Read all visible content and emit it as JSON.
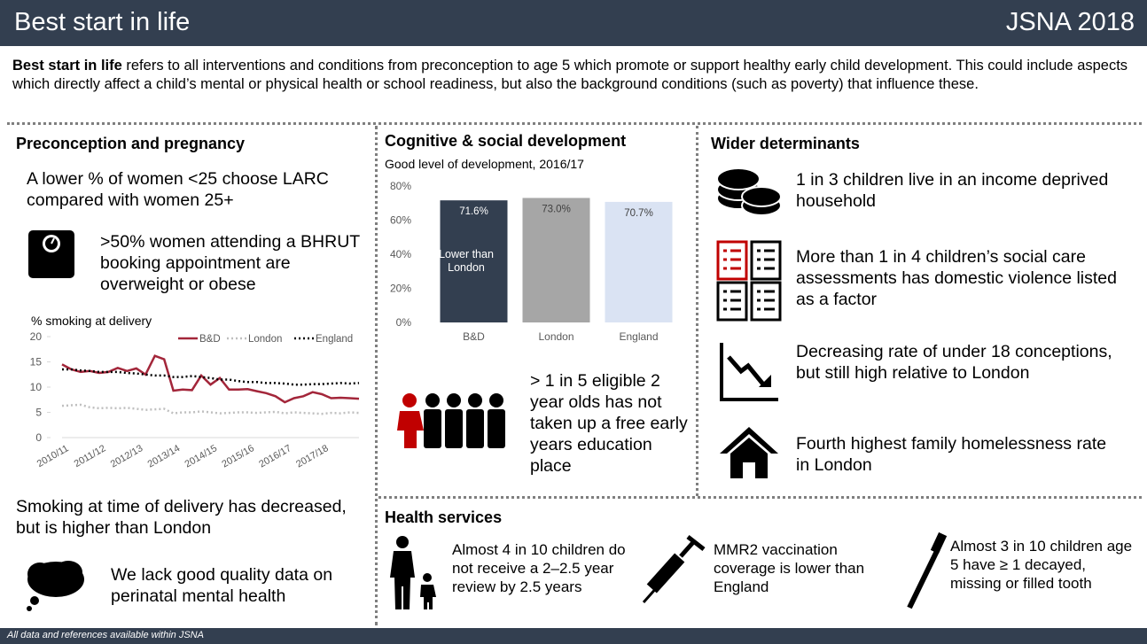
{
  "header": {
    "title": "Best start in life",
    "badge": "JSNA 2018"
  },
  "intro": {
    "lead": "Best start in life",
    "text": "refers to all interventions and conditions from preconception to age 5 which promote or support healthy early child development. This could include aspects which directly affect a child’s mental or physical health or school readiness, but also the background conditions (such as poverty) that influence these."
  },
  "preconception": {
    "heading": "Preconception and pregnancy",
    "larc": "A lower % of women <25 choose LARC compared with women 25+",
    "weight": ">50% women attending a BHRUT booking appointment are overweight or obese",
    "smoking_note": "Smoking at time of delivery has decreased, but is higher than London",
    "mental_health": "We lack good quality data on perinatal mental health"
  },
  "cognitive": {
    "heading": "Cognitive & social development",
    "uptake": "> 1 in 5 eligible 2 year olds has not taken up a free early years education place"
  },
  "wider": {
    "heading": "Wider determinants",
    "items": [
      "1 in 3 children live in an income deprived household",
      "More than 1 in 4 children’s social care assessments has domestic violence listed as a factor",
      "Decreasing rate of under 18 conceptions, but still high relative to London",
      "Fourth highest family homelessness rate in London"
    ]
  },
  "health": {
    "heading": "Health services",
    "items": [
      "Almost 4 in 10 children do not receive a 2–2.5 year review by 2.5 years",
      "MMR2 vaccination coverage is lower than England",
      "Almost 3 in 10 children age 5 have ≥ 1 decayed, missing or filled tooth"
    ]
  },
  "footer": "All data and references available within JSNA",
  "chart_data": [
    {
      "type": "bar",
      "title": "Good level of development, 2016/17",
      "categories": [
        "B&D",
        "London",
        "England"
      ],
      "values": [
        71.6,
        73.0,
        70.7
      ],
      "value_labels": [
        "71.6%",
        "73.0%",
        "70.7%"
      ],
      "colors": [
        "#333f50",
        "#a6a6a6",
        "#dae3f3"
      ],
      "annotation": "Lower than London",
      "ylim": [
        0,
        80
      ],
      "yticks": [
        {
          "value": 0,
          "label": "0%"
        },
        {
          "value": 20,
          "label": "20%"
        },
        {
          "value": 40,
          "label": "40%"
        },
        {
          "value": 60,
          "label": "60%"
        },
        {
          "value": 80,
          "label": "80%"
        }
      ]
    },
    {
      "type": "line",
      "title": "% smoking at delivery",
      "categories": [
        "2010/11",
        null,
        null,
        null,
        "2011/12",
        null,
        null,
        null,
        "2012/13",
        null,
        null,
        null,
        "2013/14",
        null,
        null,
        null,
        "2014/15",
        null,
        null,
        null,
        "2015/16",
        null,
        null,
        null,
        "2016/17",
        null,
        null,
        null,
        "2017/18",
        null,
        null,
        null,
        null
      ],
      "series": [
        {
          "name": "B&D",
          "color": "#a3263a",
          "style": "solid",
          "values": [
            14.5,
            13.5,
            13,
            13.2,
            12.8,
            13,
            13.8,
            13.2,
            13.7,
            12.5,
            16.2,
            15.5,
            9.3,
            9.5,
            9.4,
            12.3,
            10.5,
            11.8,
            9.5,
            9.5,
            9.6,
            9.2,
            8.8,
            8.2,
            7,
            7.8,
            8.2,
            9,
            8.6,
            7.8,
            7.9,
            7.8,
            7.7
          ]
        },
        {
          "name": "London",
          "color": "#bfbfbf",
          "style": "dotted",
          "values": [
            6.3,
            6.4,
            6.5,
            6,
            5.8,
            5.9,
            5.8,
            5.9,
            5.7,
            5.5,
            5.6,
            5.7,
            4.8,
            5,
            5,
            5.2,
            5,
            4.8,
            4.9,
            5,
            5,
            4.9,
            5,
            5.1,
            4.8,
            5,
            4.9,
            4.8,
            4.7,
            4.9,
            4.8,
            5,
            4.9
          ]
        },
        {
          "name": "England",
          "color": "#000000",
          "style": "dotted",
          "values": [
            13.5,
            13.5,
            13.3,
            13.2,
            13,
            13,
            13,
            12.8,
            12.7,
            12.5,
            12.3,
            12.3,
            12,
            12,
            12.2,
            12,
            11.8,
            11.5,
            11.5,
            11.2,
            11,
            11,
            10.8,
            10.8,
            10.7,
            10.5,
            10.5,
            10.6,
            10.6,
            10.7,
            10.8,
            10.7,
            10.8
          ]
        }
      ],
      "ylim": [
        0,
        20
      ],
      "yticks": [
        0,
        5,
        10,
        15,
        20
      ],
      "legend": "top-right"
    }
  ]
}
